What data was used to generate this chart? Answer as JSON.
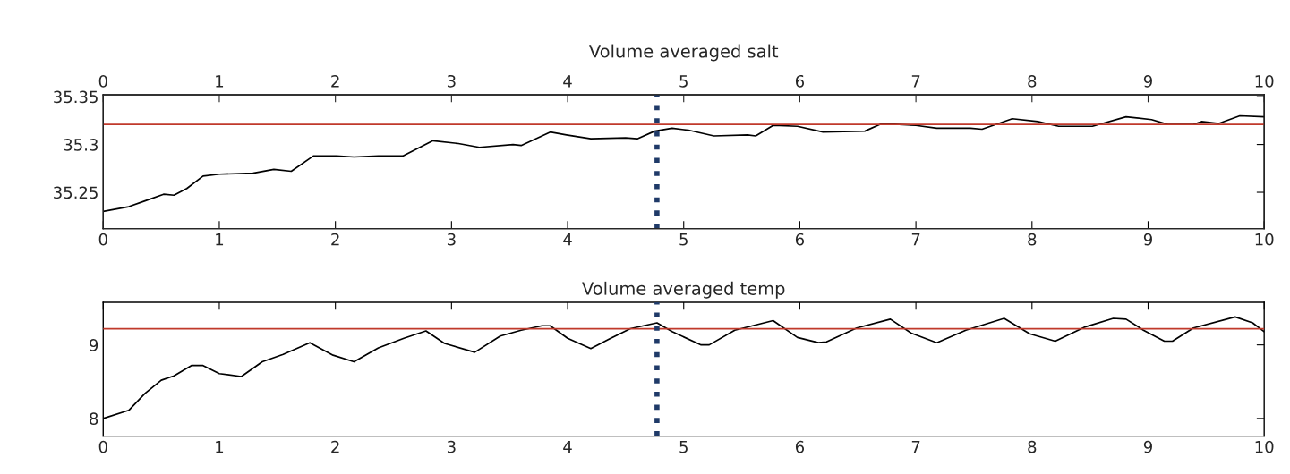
{
  "chart_data": [
    {
      "type": "line",
      "title": "Volume averaged salt",
      "x2lim": [
        0,
        10
      ],
      "x2ticks": [
        0,
        1,
        2,
        3,
        4,
        5,
        6,
        7,
        8,
        9,
        10
      ],
      "xlim": [
        0,
        10
      ],
      "xticks": [
        0,
        1,
        2,
        3,
        4,
        5,
        6,
        7,
        8,
        9,
        10
      ],
      "ylim": [
        35.212,
        35.352
      ],
      "yticks": [
        35.25,
        35.3,
        35.35
      ],
      "grid": false,
      "series": [
        {
          "color": "#000000",
          "x": [
            0,
            0.22,
            0.36,
            0.52,
            0.61,
            0.72,
            0.86,
            1.0,
            1.29,
            1.47,
            1.62,
            1.81,
            2.01,
            2.16,
            2.37,
            2.58,
            2.84,
            3.06,
            3.24,
            3.53,
            3.6,
            3.85,
            3.99,
            4.2,
            4.5,
            4.6,
            4.75,
            4.9,
            5.04,
            5.26,
            5.55,
            5.62,
            5.77,
            5.98,
            6.2,
            6.56,
            6.71,
            7.0,
            7.18,
            7.47,
            7.57,
            7.83,
            8.05,
            8.23,
            8.52,
            8.81,
            9.03,
            9.17,
            9.39,
            9.46,
            9.61,
            9.79,
            10
          ],
          "values": [
            35.23,
            35.235,
            35.241,
            35.248,
            35.247,
            35.254,
            35.267,
            35.269,
            35.27,
            35.274,
            35.272,
            35.288,
            35.288,
            35.287,
            35.288,
            35.288,
            35.304,
            35.301,
            35.297,
            35.3,
            35.299,
            35.313,
            35.31,
            35.306,
            35.307,
            35.306,
            35.314,
            35.317,
            35.315,
            35.309,
            35.31,
            35.309,
            35.32,
            35.319,
            35.313,
            35.314,
            35.322,
            35.32,
            35.317,
            35.317,
            35.316,
            35.327,
            35.324,
            35.319,
            35.319,
            35.329,
            35.326,
            35.321,
            35.321,
            35.324,
            35.322,
            35.33,
            35.329
          ]
        }
      ],
      "ref_lines": [
        {
          "axis": "y",
          "value": 35.321,
          "color": "#c0392b",
          "line_style": "solid"
        },
        {
          "axis": "x",
          "value": 4.77,
          "color": "#1f3a68",
          "line_style": "dotted"
        }
      ]
    },
    {
      "type": "line",
      "title": "Volume averaged temp",
      "xlim": [
        0,
        10
      ],
      "xticks": [
        0,
        1,
        2,
        3,
        4,
        5,
        6,
        7,
        8,
        9,
        10
      ],
      "ylim": [
        7.76,
        9.58
      ],
      "yticks": [
        8,
        9
      ],
      "grid": false,
      "series": [
        {
          "color": "#000000",
          "x": [
            0,
            0.22,
            0.36,
            0.5,
            0.61,
            0.76,
            0.86,
            1.0,
            1.19,
            1.37,
            1.55,
            1.78,
            1.98,
            2.16,
            2.37,
            2.59,
            2.78,
            2.94,
            3.2,
            3.42,
            3.6,
            3.78,
            3.85,
            4.0,
            4.2,
            4.36,
            4.54,
            4.77,
            4.9,
            5.15,
            5.22,
            5.44,
            5.77,
            5.98,
            6.16,
            6.23,
            6.49,
            6.78,
            6.96,
            7.18,
            7.43,
            7.76,
            7.98,
            8.2,
            8.45,
            8.7,
            8.81,
            8.96,
            9.14,
            9.21,
            9.39,
            9.75,
            9.9,
            10
          ],
          "values": [
            8.0,
            8.11,
            8.34,
            8.52,
            8.58,
            8.72,
            8.72,
            8.61,
            8.57,
            8.77,
            8.87,
            9.03,
            8.86,
            8.77,
            8.96,
            9.09,
            9.19,
            9.02,
            8.9,
            9.12,
            9.2,
            9.26,
            9.26,
            9.09,
            8.95,
            9.08,
            9.22,
            9.3,
            9.18,
            9.0,
            9.0,
            9.2,
            9.33,
            9.1,
            9.03,
            9.04,
            9.23,
            9.35,
            9.16,
            9.03,
            9.2,
            9.36,
            9.15,
            9.05,
            9.24,
            9.36,
            9.35,
            9.2,
            9.05,
            9.05,
            9.23,
            9.38,
            9.3,
            9.18
          ]
        }
      ],
      "ref_lines": [
        {
          "axis": "y",
          "value": 9.22,
          "color": "#c0392b",
          "line_style": "solid"
        },
        {
          "axis": "x",
          "value": 4.77,
          "color": "#1f3a68",
          "line_style": "dotted"
        }
      ]
    }
  ]
}
